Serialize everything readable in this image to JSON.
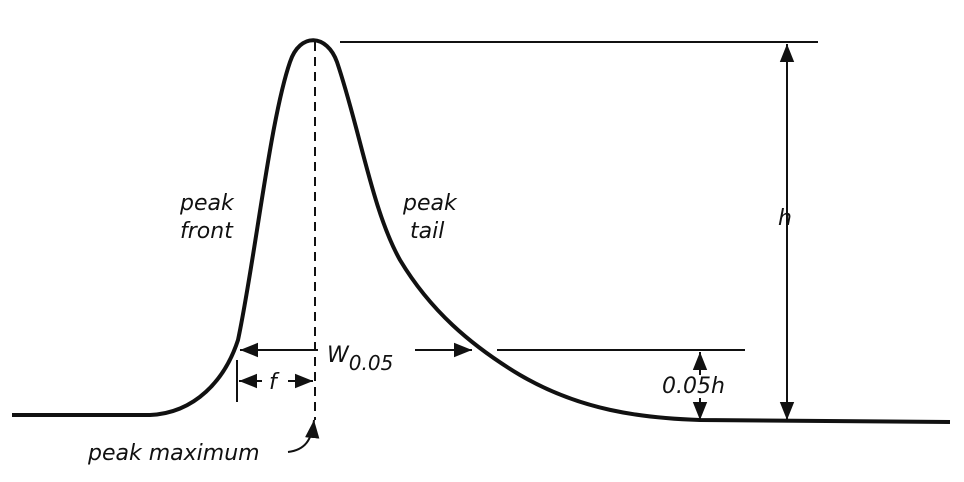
{
  "labels": {
    "peak_front": [
      "peak",
      "front"
    ],
    "peak_tail": [
      "peak",
      "tail"
    ],
    "height": "h",
    "width": {
      "symbol": "W",
      "subscript": "0.05"
    },
    "front_distance": "f",
    "fraction_height": "0.05h",
    "peak_maximum": "peak maximum"
  }
}
